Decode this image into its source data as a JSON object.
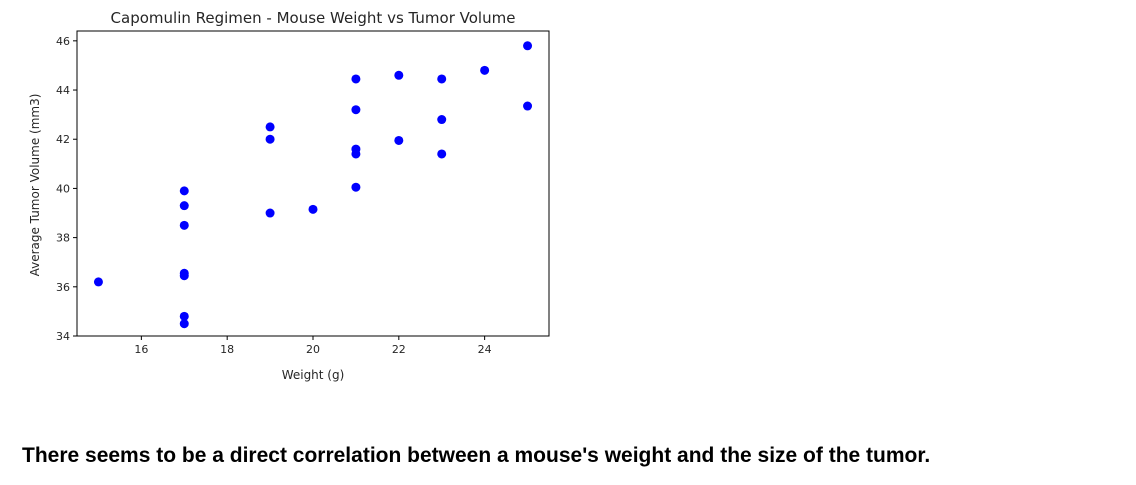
{
  "conclusion_text": "There seems to be a direct correlation between a mouse's weight and the size of the tumor.",
  "chart_data": {
    "type": "scatter",
    "title": "Capomulin Regimen - Mouse Weight vs Tumor Volume",
    "xlabel": "Weight (g)",
    "ylabel": "Average Tumor Volume (mm3)",
    "xlim": [
      14.5,
      25.5
    ],
    "ylim": [
      34,
      46.4
    ],
    "xticks": [
      16,
      18,
      20,
      22,
      24
    ],
    "yticks": [
      34,
      36,
      38,
      40,
      42,
      44,
      46
    ],
    "point_color": "#0000ff",
    "grid": false,
    "points": [
      {
        "x": 15,
        "y": 36.2
      },
      {
        "x": 17,
        "y": 34.5
      },
      {
        "x": 17,
        "y": 34.8
      },
      {
        "x": 17,
        "y": 36.45
      },
      {
        "x": 17,
        "y": 36.55
      },
      {
        "x": 17,
        "y": 38.5
      },
      {
        "x": 17,
        "y": 39.3
      },
      {
        "x": 17,
        "y": 39.9
      },
      {
        "x": 19,
        "y": 39.0
      },
      {
        "x": 19,
        "y": 42.0
      },
      {
        "x": 19,
        "y": 42.5
      },
      {
        "x": 20,
        "y": 39.15
      },
      {
        "x": 21,
        "y": 40.05
      },
      {
        "x": 21,
        "y": 41.4
      },
      {
        "x": 21,
        "y": 41.6
      },
      {
        "x": 21,
        "y": 43.2
      },
      {
        "x": 21,
        "y": 44.45
      },
      {
        "x": 22,
        "y": 41.95
      },
      {
        "x": 22,
        "y": 44.6
      },
      {
        "x": 23,
        "y": 41.4
      },
      {
        "x": 23,
        "y": 42.8
      },
      {
        "x": 23,
        "y": 44.45
      },
      {
        "x": 24,
        "y": 44.8
      },
      {
        "x": 25,
        "y": 43.35
      },
      {
        "x": 25,
        "y": 45.8
      }
    ]
  }
}
